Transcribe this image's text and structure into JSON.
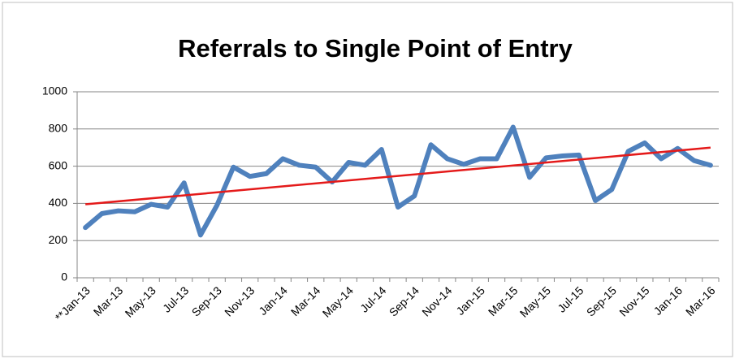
{
  "chart_data": {
    "type": "line",
    "title": "Referrals to Single Point of Entry",
    "categories": [
      "**Jan-13",
      null,
      "Mar-13",
      null,
      "May-13",
      null,
      "Jul-13",
      null,
      "Sep-13",
      null,
      "Nov-13",
      null,
      "Jan-14",
      null,
      "Mar-14",
      null,
      "May-14",
      null,
      "Jul-14",
      null,
      "Sep-14",
      null,
      "Nov-14",
      null,
      "Jan-15",
      null,
      "Mar-15",
      null,
      "May-15",
      null,
      "Jul-15",
      null,
      "Sep-15",
      null,
      "Nov-15",
      null,
      "Jan-16",
      null,
      "Mar-16"
    ],
    "values": [
      270,
      345,
      360,
      355,
      395,
      380,
      510,
      230,
      390,
      595,
      545,
      560,
      640,
      605,
      595,
      515,
      620,
      605,
      690,
      380,
      440,
      715,
      640,
      610,
      640,
      640,
      810,
      540,
      645,
      655,
      660,
      415,
      475,
      680,
      725,
      640,
      695,
      630,
      605
    ],
    "color": "#4f81bd",
    "trendline": {
      "color": "#e41a1a",
      "start": 395,
      "end": 700
    },
    "ylim": [
      0,
      1000
    ],
    "yticks": [
      0,
      200,
      400,
      600,
      800,
      1000
    ],
    "grid": true
  }
}
